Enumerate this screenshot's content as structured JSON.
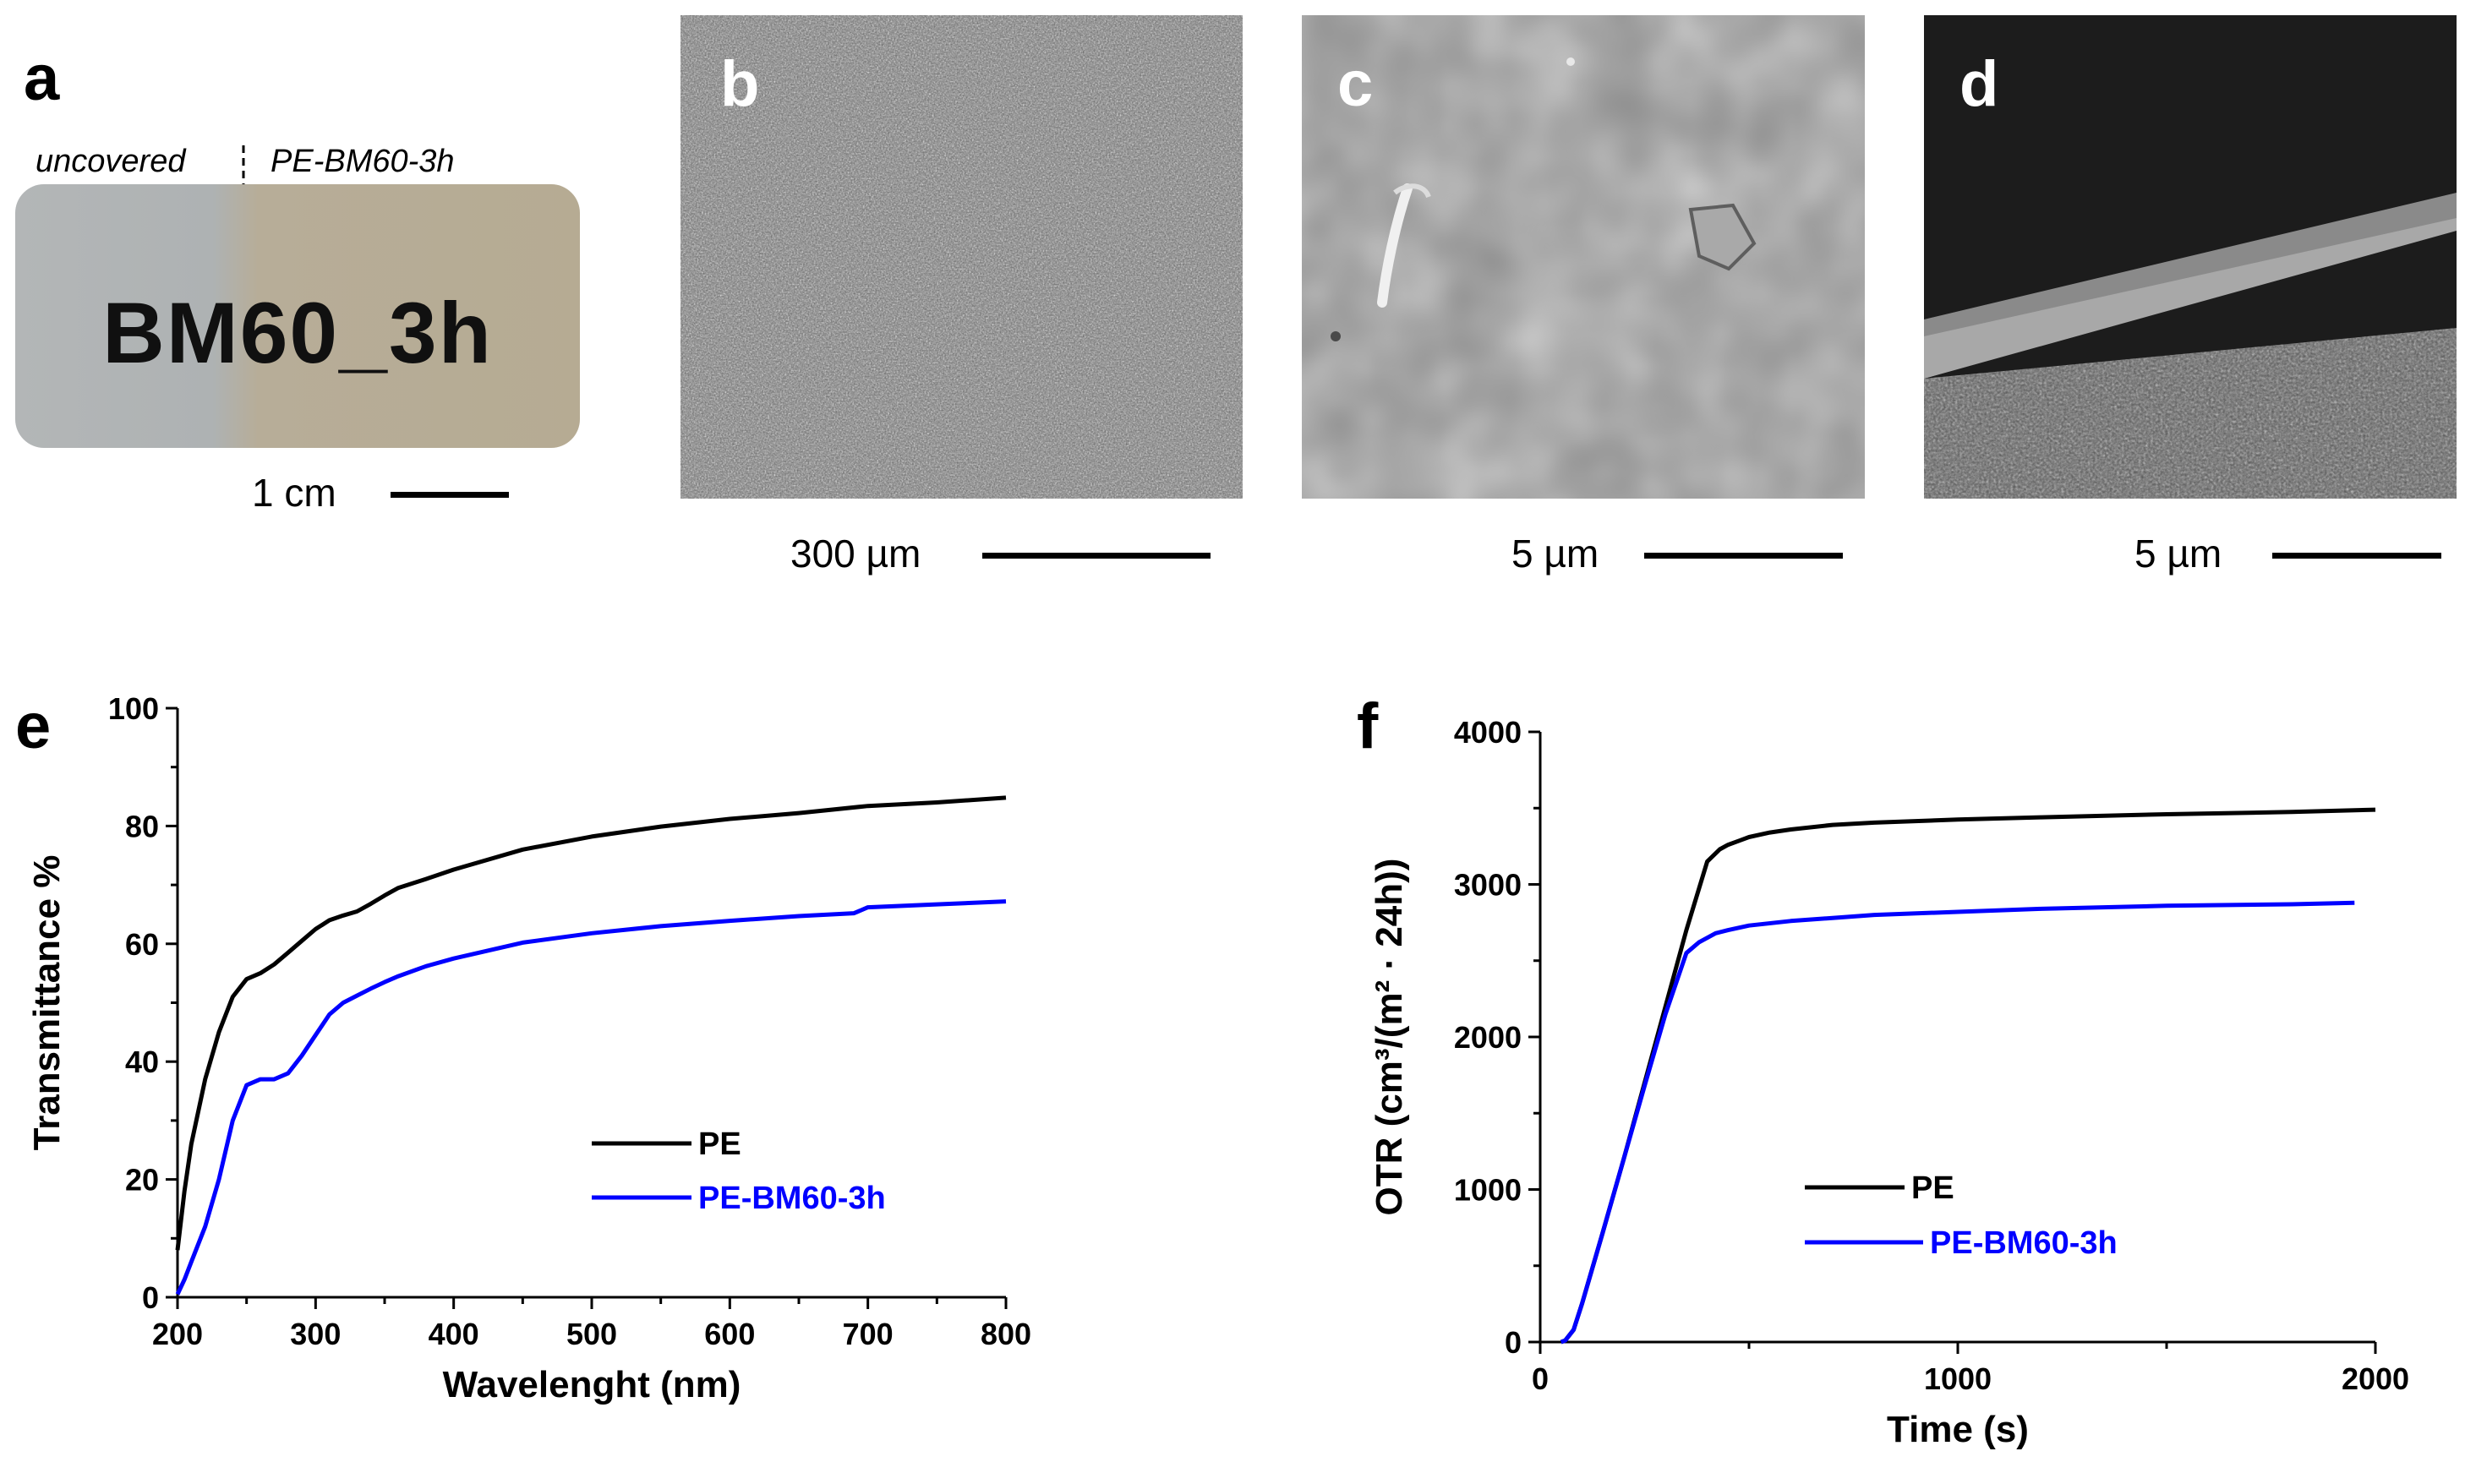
{
  "panels": {
    "a": {
      "letter": "a",
      "left_caption": "uncovered",
      "right_caption": "PE-BM60-3h",
      "sample_text": "BM60_3h",
      "scale_label": "1 cm"
    },
    "b": {
      "letter": "b",
      "scale_label": "300 µm"
    },
    "c": {
      "letter": "c",
      "scale_label": "5 µm"
    },
    "d": {
      "letter": "d",
      "scale_label": "5 µm"
    },
    "e": {
      "letter": "e"
    },
    "f": {
      "letter": "f"
    }
  },
  "colors": {
    "pe": "#000000",
    "pe_bm60": "#0000ff"
  },
  "chart_data": [
    {
      "id": "e",
      "type": "line",
      "xlabel": "Wavelenght (nm)",
      "ylabel": "Transmittance %",
      "xlim": [
        200,
        800
      ],
      "ylim": [
        0,
        100
      ],
      "xticks": [
        200,
        300,
        400,
        500,
        600,
        700,
        800
      ],
      "yticks": [
        0,
        20,
        40,
        60,
        80,
        100
      ],
      "legend_position": "center-right",
      "series": [
        {
          "name": "PE",
          "color": "#000000",
          "x": [
            200,
            205,
            210,
            220,
            230,
            240,
            250,
            260,
            270,
            280,
            290,
            300,
            310,
            320,
            330,
            340,
            350,
            360,
            380,
            400,
            450,
            500,
            550,
            600,
            650,
            700,
            750,
            800
          ],
          "y": [
            8,
            18,
            26,
            37,
            45,
            51,
            54,
            55,
            56.5,
            58.5,
            60.5,
            62.5,
            64,
            64.8,
            65.5,
            66.8,
            68.2,
            69.5,
            71,
            72.6,
            76,
            78.2,
            79.9,
            81.2,
            82.2,
            83.4,
            84,
            84.8
          ]
        },
        {
          "name": "PE-BM60-3h",
          "color": "#0000ff",
          "x": [
            200,
            205,
            210,
            220,
            230,
            240,
            250,
            260,
            270,
            280,
            290,
            300,
            310,
            320,
            330,
            340,
            350,
            360,
            380,
            400,
            450,
            500,
            550,
            600,
            650,
            690,
            700,
            750,
            800
          ],
          "y": [
            0.5,
            3,
            6,
            12,
            20,
            30,
            36,
            37,
            37,
            38,
            41,
            44.5,
            48,
            50,
            51.2,
            52.4,
            53.5,
            54.5,
            56.2,
            57.5,
            60.2,
            61.8,
            63,
            63.9,
            64.7,
            65.2,
            66.2,
            66.7,
            67.2
          ]
        }
      ]
    },
    {
      "id": "f",
      "type": "line",
      "xlabel": "Time (s)",
      "ylabel": "OTR (cm³/(m² · 24h))",
      "xlim": [
        0,
        2000
      ],
      "ylim": [
        0,
        4000
      ],
      "xticks": [
        0,
        1000,
        2000
      ],
      "yticks": [
        0,
        1000,
        2000,
        3000,
        4000
      ],
      "legend_position": "center",
      "series": [
        {
          "name": "PE",
          "color": "#000000",
          "x": [
            50,
            60,
            80,
            100,
            150,
            200,
            250,
            300,
            350,
            400,
            430,
            450,
            480,
            500,
            550,
            600,
            700,
            800,
            1000,
            1200,
            1500,
            1800,
            2000
          ],
          "y": [
            0,
            10,
            80,
            250,
            720,
            1200,
            1700,
            2200,
            2700,
            3150,
            3230,
            3260,
            3290,
            3310,
            3340,
            3360,
            3390,
            3405,
            3425,
            3440,
            3460,
            3475,
            3490
          ]
        },
        {
          "name": "PE-BM60-3h",
          "color": "#0000ff",
          "x": [
            50,
            60,
            80,
            100,
            150,
            200,
            250,
            300,
            350,
            380,
            400,
            420,
            450,
            500,
            600,
            700,
            800,
            1000,
            1200,
            1500,
            1800,
            1950
          ],
          "y": [
            0,
            10,
            80,
            250,
            720,
            1200,
            1680,
            2150,
            2550,
            2620,
            2650,
            2680,
            2700,
            2730,
            2760,
            2780,
            2800,
            2820,
            2840,
            2860,
            2870,
            2880
          ]
        }
      ]
    }
  ]
}
